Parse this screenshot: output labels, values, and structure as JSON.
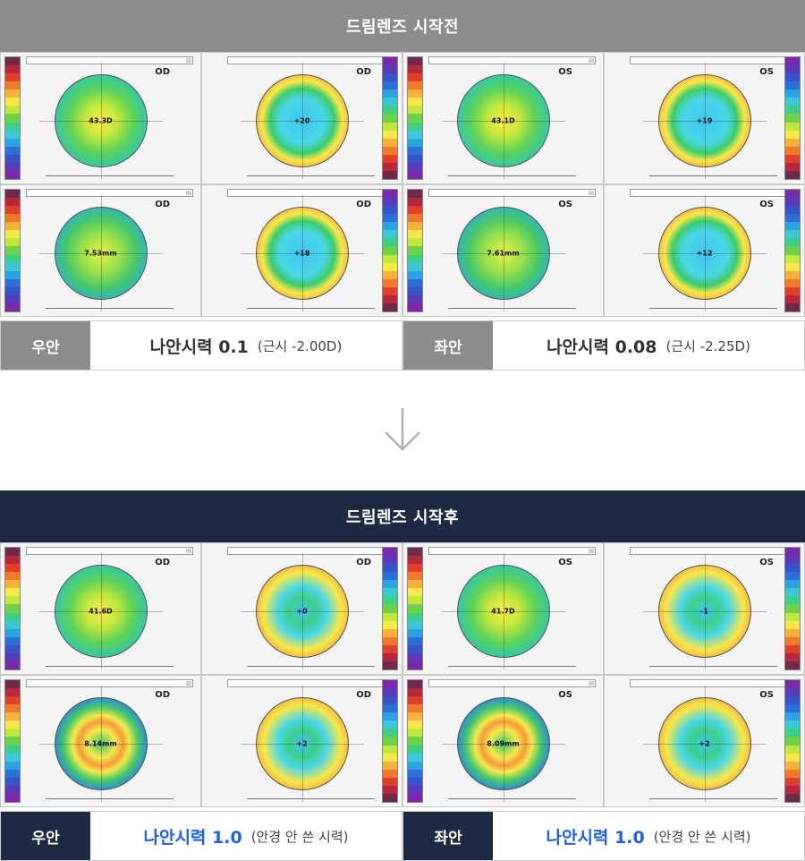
{
  "before": {
    "title": "드림렌즈 시작전",
    "panels": [
      {
        "eye": "OD",
        "type": "axial",
        "center": "43.3D"
      },
      {
        "eye": "OD",
        "type": "elev",
        "center": "+20"
      },
      {
        "eye": "OS",
        "type": "axial",
        "center": "43.1D"
      },
      {
        "eye": "OS",
        "type": "elev",
        "center": "+19"
      },
      {
        "eye": "OD",
        "type": "tang",
        "center": "7.53mm"
      },
      {
        "eye": "OD",
        "type": "elev",
        "center": "+18"
      },
      {
        "eye": "OS",
        "type": "tang",
        "center": "7.61mm"
      },
      {
        "eye": "OS",
        "type": "elev",
        "center": "+12"
      }
    ],
    "right": {
      "tag": "우안",
      "main": "나안시력 0.1",
      "sub": "(근시 -2.00D)"
    },
    "left": {
      "tag": "좌안",
      "main": "나안시력 0.08",
      "sub": "(근시 -2.25D)"
    }
  },
  "after": {
    "title": "드림렌즈 시작후",
    "panels": [
      {
        "eye": "OD",
        "type": "axial",
        "center": "41.6D"
      },
      {
        "eye": "OD",
        "type": "elev",
        "center": "+0"
      },
      {
        "eye": "OS",
        "type": "axial",
        "center": "41.7D"
      },
      {
        "eye": "OS",
        "type": "elev",
        "center": "-1"
      },
      {
        "eye": "OD",
        "type": "tang",
        "center": "8.14mm"
      },
      {
        "eye": "OD",
        "type": "elev",
        "center": "+2"
      },
      {
        "eye": "OS",
        "type": "tang",
        "center": "8.09mm"
      },
      {
        "eye": "OS",
        "type": "elev",
        "center": "+2"
      }
    ],
    "right": {
      "tag": "우안",
      "main": "나안시력 1.0",
      "sub": "(안경 안 쓴 시력)"
    },
    "left": {
      "tag": "좌안",
      "main": "나안시력 1.0",
      "sub": "(안경 안 쓴 시력)"
    }
  },
  "icons": {
    "divider_arrow": "arrow-down-icon"
  },
  "colors": {
    "before_header": "#8c8c8c",
    "after_header": "#1e2a44",
    "after_accent": "#1a62e6"
  }
}
